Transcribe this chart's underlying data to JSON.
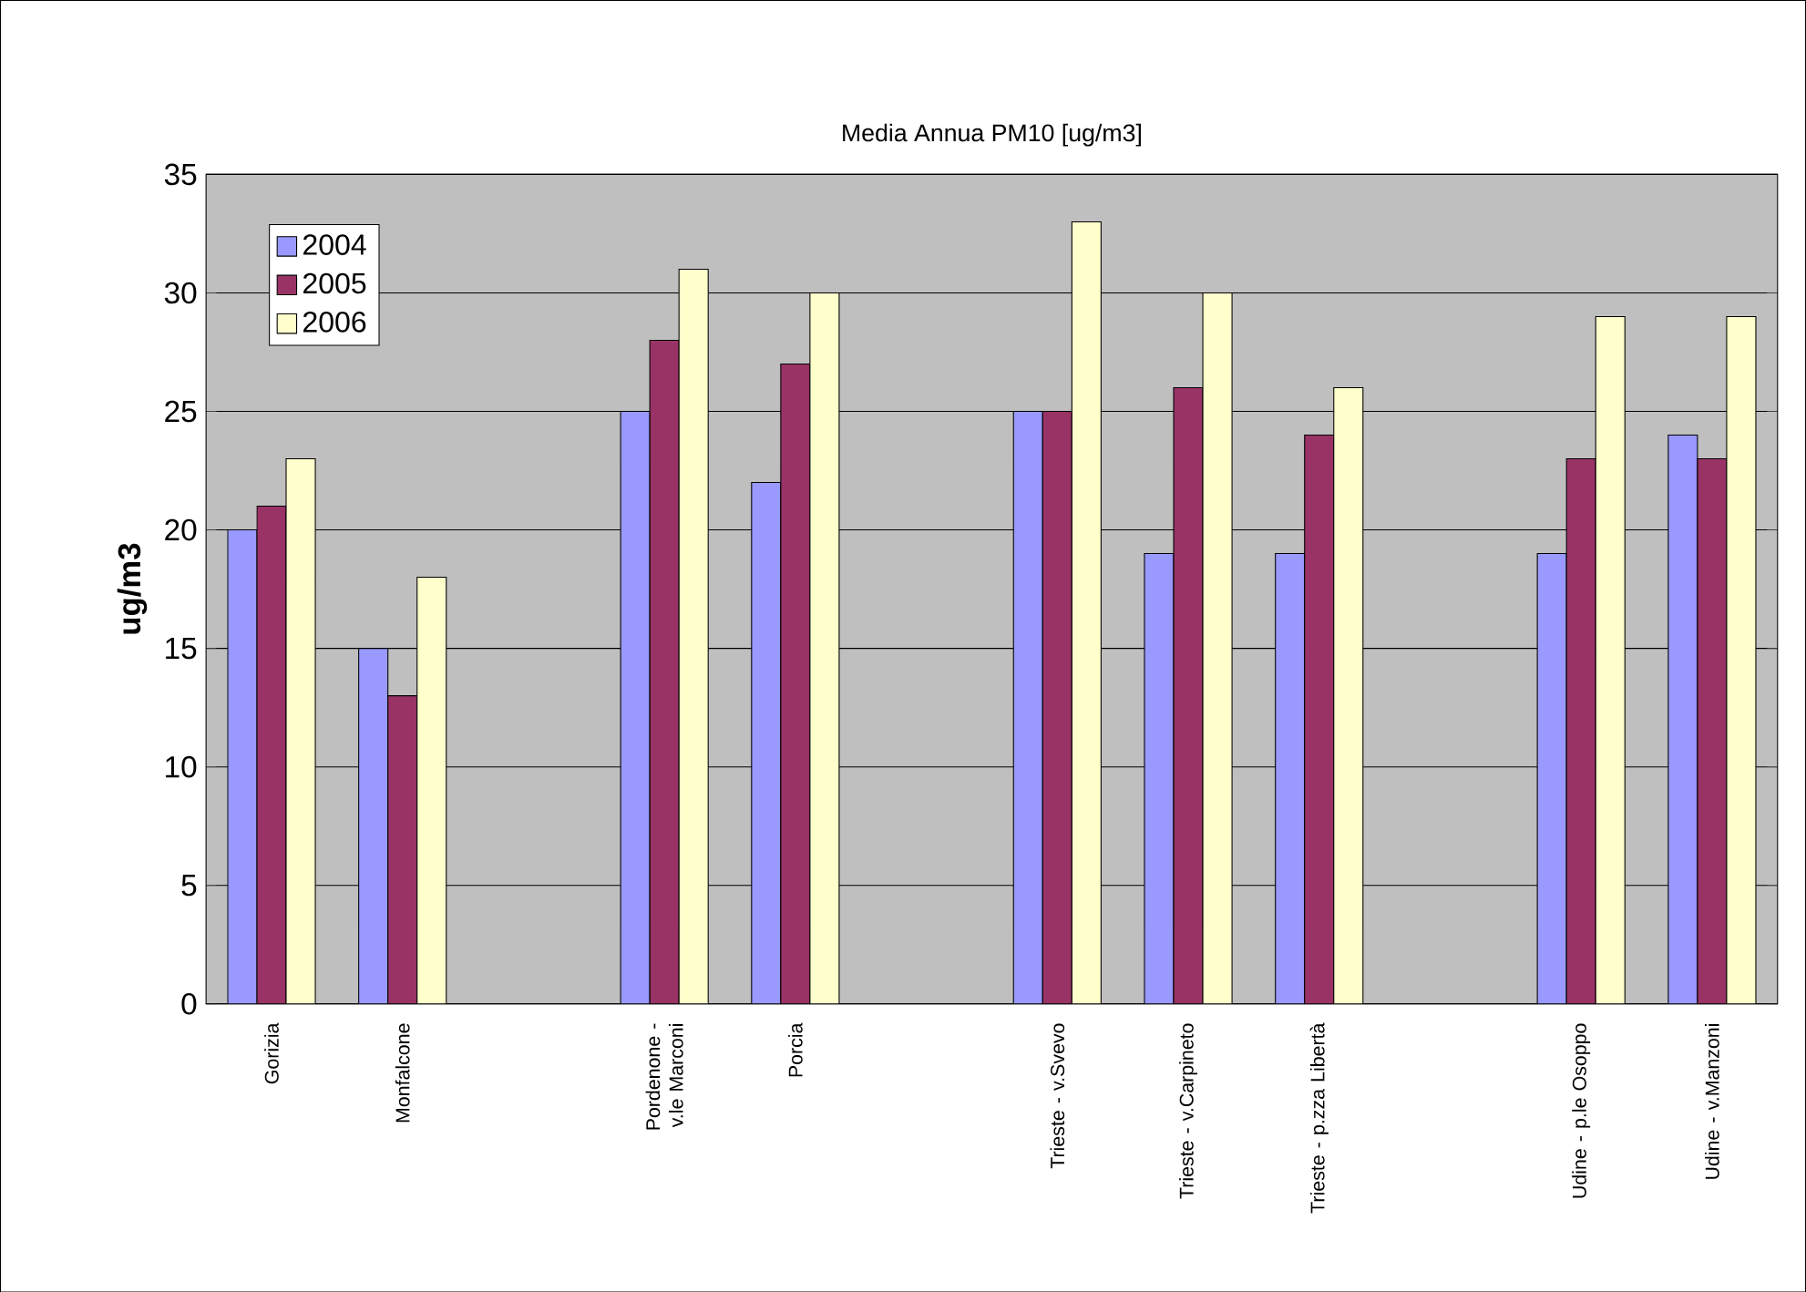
{
  "chart_data": {
    "type": "bar",
    "title": "Media Annua PM10 [ug/m3]",
    "ylabel": "ug/m3",
    "categories": [
      "Gorizia",
      "Monfalcone",
      null,
      "Pordenone - v.le Marconi",
      "Porcia",
      null,
      "Trieste - v.Svevo",
      "Trieste - v.Carpineto",
      "Trieste - p.zza Libertà",
      null,
      "Udine - p.le Osoppo",
      "Udine - v.Manzoni"
    ],
    "series": [
      {
        "name": "2004",
        "color": "#9999ff",
        "values": [
          20,
          15,
          null,
          25,
          22,
          null,
          25,
          19,
          19,
          null,
          19,
          24
        ]
      },
      {
        "name": "2005",
        "color": "#993366",
        "values": [
          21,
          13,
          null,
          28,
          27,
          null,
          25,
          26,
          24,
          null,
          23,
          23
        ]
      },
      {
        "name": "2006",
        "color": "#ffffcc",
        "values": [
          23,
          18,
          null,
          31,
          30,
          null,
          33,
          30,
          26,
          null,
          29,
          29
        ]
      }
    ],
    "ylim": [
      0,
      35
    ],
    "yticks": [
      0,
      5,
      10,
      15,
      20,
      25,
      30,
      35
    ],
    "grid": "y",
    "legend": "top left"
  }
}
